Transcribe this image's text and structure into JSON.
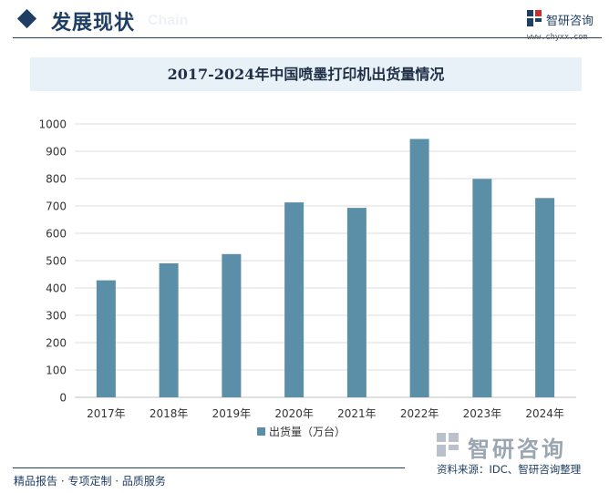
{
  "header": {
    "section_title": "发展现状",
    "section_watermark": "Chain",
    "logo_text": "智研咨询",
    "logo_url": "www.chyxx.com"
  },
  "colors": {
    "bar": "#5b8fa8",
    "brand": "#1f3e63",
    "grid": "#dcdcdc",
    "axis_text": "#333333"
  },
  "chart_data": {
    "type": "bar",
    "title": "2017-2024年中国喷墨打印机出货量情况",
    "categories": [
      "2017年",
      "2018年",
      "2019年",
      "2020年",
      "2021年",
      "2022年",
      "2023年",
      "2024年"
    ],
    "series": [
      {
        "name": "出货量（万台）",
        "values": [
          428,
          490,
          524,
          713,
          693,
          945,
          799,
          729
        ]
      }
    ],
    "yticks": [
      "0",
      "100",
      "200",
      "300",
      "400",
      "500",
      "600",
      "700",
      "800",
      "900",
      "1000"
    ],
    "ylim": [
      0,
      1000
    ],
    "grid": true,
    "legend_position": "bottom-center"
  },
  "footer": {
    "left": "精品报告 · 专项定制 · 品质服务",
    "source": "资料来源：IDC、智研咨询整理",
    "logo_text": "智研咨询"
  }
}
